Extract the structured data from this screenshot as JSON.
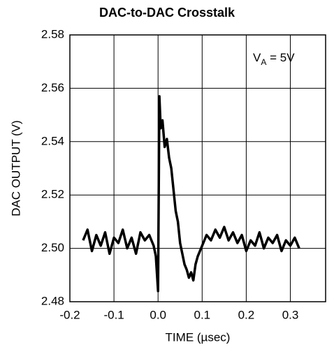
{
  "chart_data": {
    "type": "line",
    "title": "DAC-to-DAC Crosstalk",
    "x_label": "TIME (µsec)",
    "y_label": "DAC OUTPUT (V)",
    "annotation": {
      "text": "V",
      "subscript": "A",
      "rest": " = 5V"
    },
    "xlim": [
      -0.2,
      0.38
    ],
    "ylim": [
      2.48,
      2.58
    ],
    "xticks": [
      -0.2,
      -0.1,
      {
        "value": 0,
        "label": "0.0"
      },
      0.1,
      0.2,
      0.3
    ],
    "yticks": [
      {
        "value": 2.48,
        "label": "2.48"
      },
      {
        "value": 2.5,
        "label": "2.50"
      },
      2.52,
      2.54,
      2.56,
      2.58
    ],
    "grid": true,
    "series": [
      {
        "color": "#000000",
        "x": [
          -0.17,
          -0.16,
          -0.15,
          -0.14,
          -0.13,
          -0.12,
          -0.11,
          -0.1,
          -0.09,
          -0.08,
          -0.07,
          -0.06,
          -0.05,
          -0.04,
          -0.03,
          -0.02,
          -0.01,
          -0.005,
          0,
          0.003,
          0.006,
          0.01,
          0.015,
          0.02,
          0.025,
          0.03,
          0.035,
          0.04,
          0.045,
          0.05,
          0.055,
          0.06,
          0.065,
          0.07,
          0.075,
          0.08,
          0.085,
          0.09,
          0.1,
          0.11,
          0.12,
          0.13,
          0.14,
          0.15,
          0.16,
          0.17,
          0.18,
          0.19,
          0.2,
          0.21,
          0.22,
          0.23,
          0.24,
          0.25,
          0.26,
          0.27,
          0.28,
          0.29,
          0.3,
          0.31,
          0.32
        ],
        "values": [
          2.503,
          2.507,
          2.499,
          2.505,
          2.501,
          2.506,
          2.498,
          2.504,
          2.502,
          2.507,
          2.5,
          2.504,
          2.498,
          2.506,
          2.503,
          2.505,
          2.501,
          2.497,
          2.484,
          2.557,
          2.545,
          2.548,
          2.538,
          2.541,
          2.534,
          2.53,
          2.522,
          2.514,
          2.51,
          2.502,
          2.498,
          2.494,
          2.492,
          2.489,
          2.491,
          2.488,
          2.494,
          2.497,
          2.501,
          2.505,
          2.503,
          2.507,
          2.504,
          2.508,
          2.503,
          2.506,
          2.502,
          2.505,
          2.499,
          2.503,
          2.501,
          2.506,
          2.5,
          2.504,
          2.502,
          2.505,
          2.499,
          2.503,
          2.501,
          2.504,
          2.5
        ]
      }
    ]
  }
}
